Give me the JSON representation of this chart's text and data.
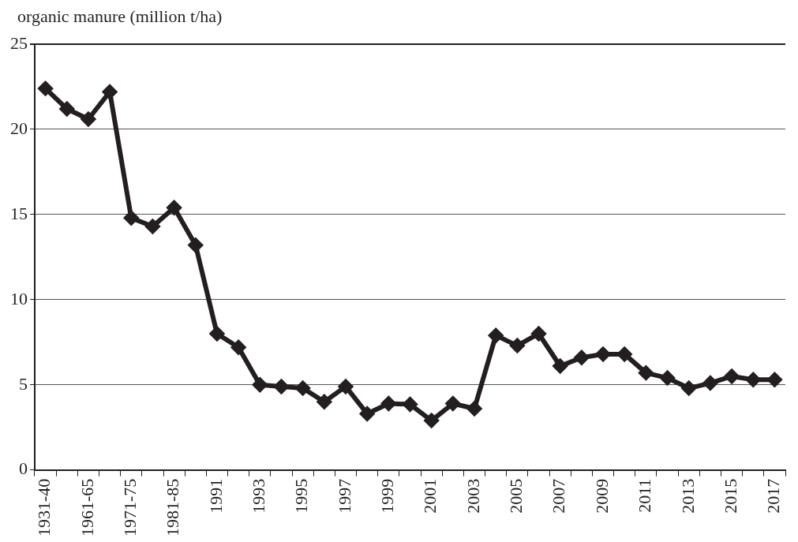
{
  "chart_data": {
    "type": "line",
    "ylabel": "organic manure (million t/ha)",
    "categories": [
      "1931-40",
      null,
      "1961-65",
      null,
      "1971-75",
      null,
      "1981-85",
      null,
      "1991",
      null,
      "1993",
      null,
      "1995",
      null,
      "1997",
      null,
      "1999",
      null,
      "2001",
      null,
      "2003",
      null,
      "2005",
      null,
      "2007",
      null,
      "2009",
      null,
      "2011",
      null,
      "2013",
      null,
      "2015",
      null,
      "2017"
    ],
    "series": [
      {
        "color": "#231f20",
        "values": [
          22.4,
          21.2,
          20.6,
          22.2,
          14.8,
          14.3,
          15.4,
          13.2,
          8.0,
          7.2,
          5.0,
          4.9,
          4.8,
          4.0,
          4.9,
          3.3,
          3.9,
          3.85,
          2.9,
          3.9,
          3.6,
          7.9,
          7.3,
          8.0,
          6.1,
          6.6,
          6.8,
          6.8,
          5.7,
          5.4,
          4.8,
          5.1,
          5.5,
          5.3,
          5.3
        ]
      }
    ],
    "ylim": [
      0,
      25
    ],
    "yticks": [
      0,
      5,
      10,
      15,
      20,
      25
    ],
    "grid": "y",
    "legend": false,
    "marker": "diamond",
    "line_style": "solid"
  }
}
